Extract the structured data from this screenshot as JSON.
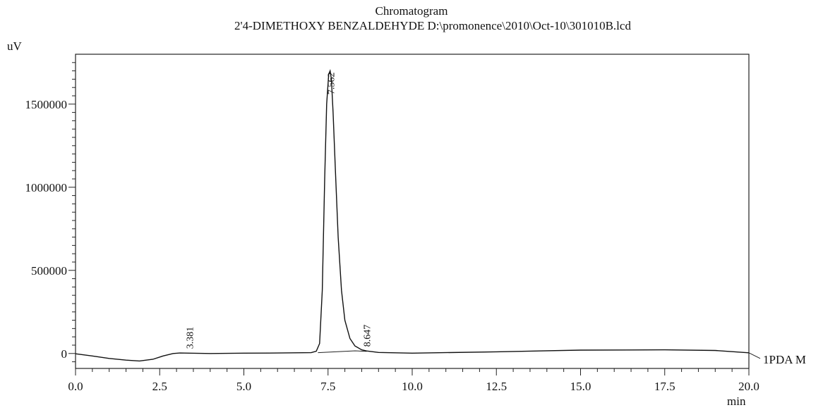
{
  "chart_data": {
    "type": "line",
    "title": "Chromatogram",
    "subtitle": "2'4-DIMETHOXY BENZALDEHYDE D:\\promonence\\2010\\Oct-10\\301010B.lcd",
    "ylabel": "uV",
    "xlabel": "min",
    "xlim": [
      0,
      20
    ],
    "ylim": [
      -90000,
      1800000
    ],
    "x_ticks": [
      "0.0",
      "2.5",
      "5.0",
      "7.5",
      "10.0",
      "12.5",
      "15.0",
      "17.5",
      "20.0"
    ],
    "y_ticks": [
      "0",
      "500000",
      "1000000",
      "1500000"
    ],
    "series": [
      {
        "name": "1PDA M",
        "x": [
          0.0,
          0.5,
          1.0,
          1.5,
          1.9,
          2.3,
          2.6,
          2.9,
          3.1,
          3.381,
          4.0,
          5.0,
          6.0,
          7.0,
          7.15,
          7.25,
          7.33,
          7.4,
          7.46,
          7.52,
          7.562,
          7.6,
          7.65,
          7.72,
          7.8,
          7.9,
          8.0,
          8.15,
          8.3,
          8.5,
          8.647,
          9.0,
          10.0,
          12.5,
          15.0,
          17.5,
          19.0,
          20.0
        ],
        "y": [
          -2000,
          -15000,
          -30000,
          -40000,
          -45000,
          -35000,
          -15000,
          0,
          3000,
          2000,
          0,
          2000,
          3000,
          5000,
          14000,
          60000,
          380000,
          1050000,
          1500000,
          1680000,
          1700000,
          1650000,
          1450000,
          1100000,
          700000,
          380000,
          200000,
          90000,
          45000,
          22000,
          15000,
          6000,
          2000,
          10000,
          20000,
          22000,
          18000,
          4000
        ]
      }
    ],
    "peaks": [
      {
        "rt": "3.381",
        "x": 3.381,
        "y": 2000
      },
      {
        "rt": "7.562",
        "x": 7.562,
        "y": 1700000
      },
      {
        "rt": "8.647",
        "x": 8.647,
        "y": 15000
      }
    ],
    "baseline": {
      "x": [
        7.2,
        8.3,
        8.647
      ],
      "y": [
        5000,
        16000,
        13000
      ]
    },
    "grid": false,
    "legend": "series label at right end of trace"
  }
}
